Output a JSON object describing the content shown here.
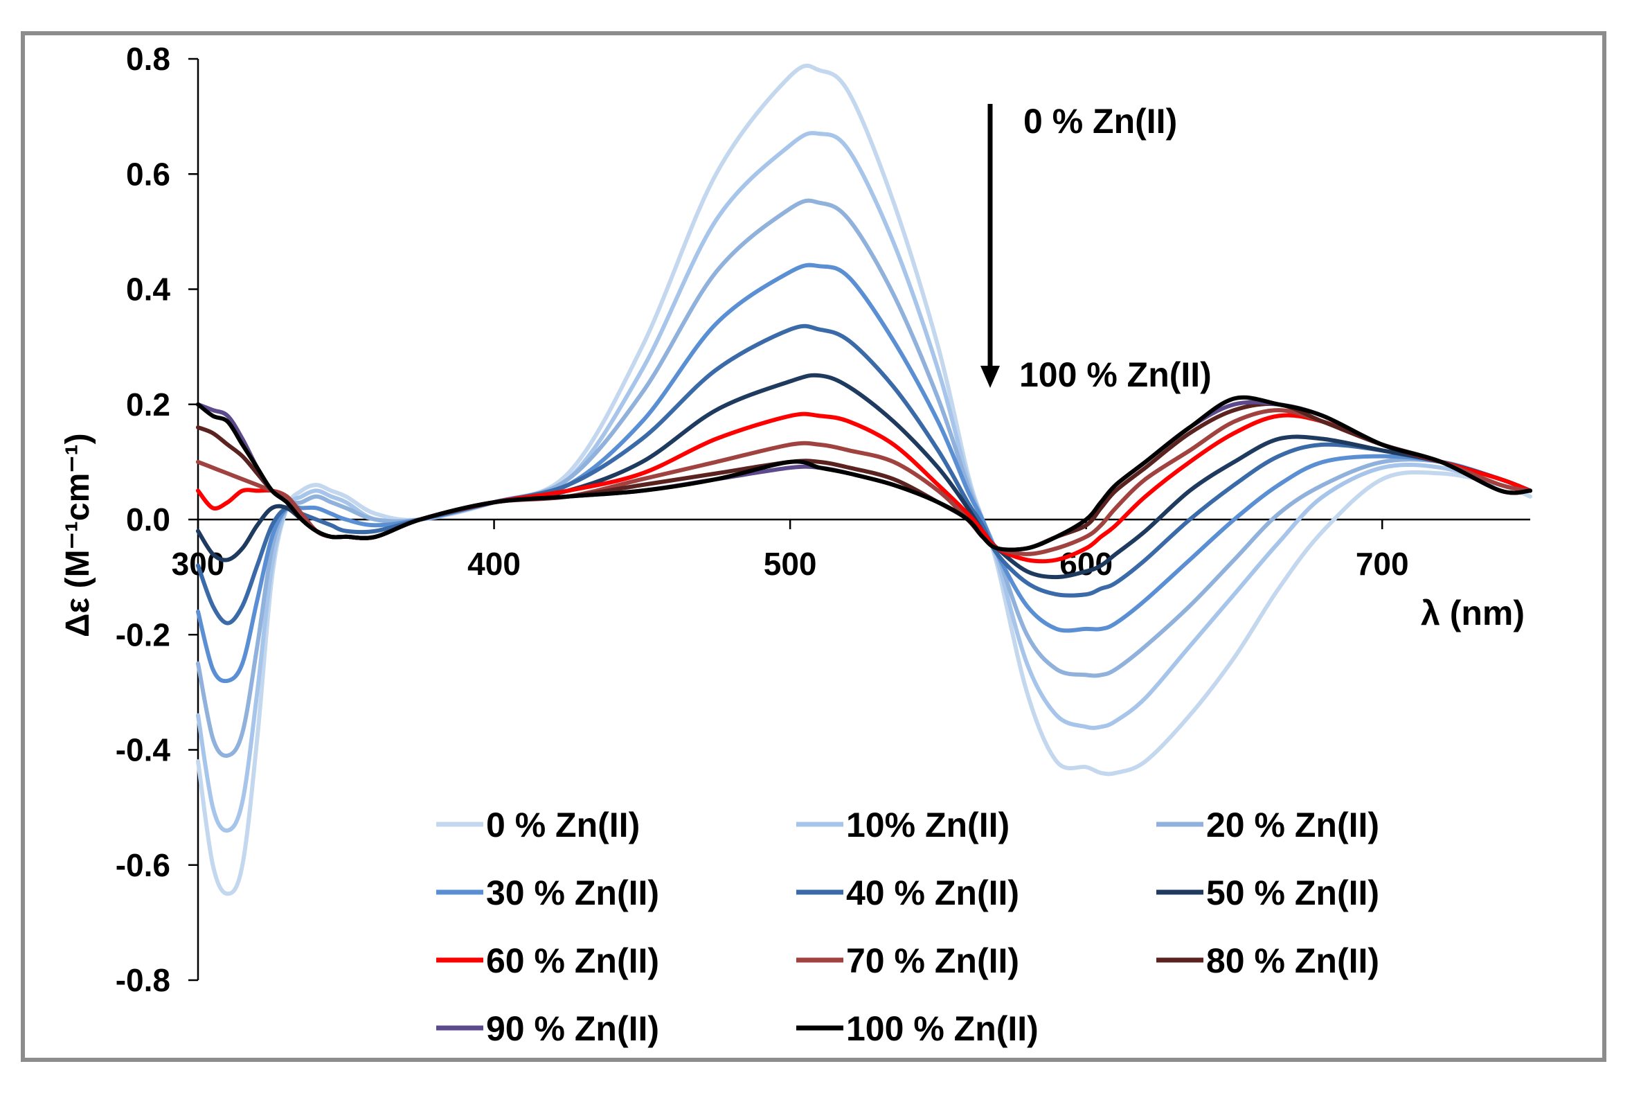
{
  "chart_data": {
    "type": "line",
    "title": "",
    "xlabel": "λ (nm)",
    "ylabel": "Δε (M⁻¹cm⁻¹)",
    "xlim": [
      300,
      750
    ],
    "ylim": [
      -0.8,
      0.8
    ],
    "x_ticks": [
      "300",
      "400",
      "500",
      "600",
      "700"
    ],
    "y_ticks": [
      "0.8",
      "0.6",
      "0.4",
      "0.2",
      "0.0",
      "-0.2",
      "-0.4",
      "-0.6",
      "-0.8"
    ],
    "grid": false,
    "legend_position": "bottom-center",
    "annotations": {
      "top_label": "0 % Zn(II)",
      "bottom_label": "100 % Zn(II)",
      "arrow": "down"
    },
    "x": [
      300,
      305,
      310,
      315,
      320,
      325,
      330,
      335,
      340,
      345,
      350,
      360,
      375,
      400,
      425,
      450,
      475,
      500,
      510,
      520,
      535,
      550,
      560,
      565,
      570,
      580,
      590,
      600,
      605,
      610,
      620,
      635,
      650,
      665,
      680,
      700,
      720,
      740,
      750
    ],
    "series": [
      {
        "name": "0 % Zn(II)",
        "color": "#c3d7ee",
        "values": [
          -0.42,
          -0.6,
          -0.65,
          -0.6,
          -0.38,
          -0.1,
          0.02,
          0.05,
          0.06,
          0.05,
          0.04,
          0.01,
          0.0,
          0.03,
          0.08,
          0.3,
          0.6,
          0.77,
          0.78,
          0.74,
          0.55,
          0.3,
          0.08,
          0.0,
          -0.08,
          -0.3,
          -0.42,
          -0.43,
          -0.44,
          -0.44,
          -0.42,
          -0.34,
          -0.24,
          -0.12,
          -0.02,
          0.07,
          0.08,
          0.06,
          0.04
        ]
      },
      {
        "name": "10% Zn(II)",
        "color": "#a7c5ea",
        "values": [
          -0.34,
          -0.5,
          -0.54,
          -0.49,
          -0.3,
          -0.08,
          0.02,
          0.04,
          0.05,
          0.04,
          0.03,
          0.0,
          0.0,
          0.03,
          0.07,
          0.26,
          0.52,
          0.65,
          0.67,
          0.64,
          0.48,
          0.26,
          0.07,
          0.0,
          -0.07,
          -0.25,
          -0.34,
          -0.36,
          -0.36,
          -0.35,
          -0.31,
          -0.22,
          -0.13,
          -0.04,
          0.04,
          0.09,
          0.09,
          0.06,
          0.05
        ]
      },
      {
        "name": "20  % Zn(II)",
        "color": "#8fb1dc",
        "values": [
          -0.25,
          -0.38,
          -0.41,
          -0.37,
          -0.22,
          -0.05,
          0.02,
          0.03,
          0.04,
          0.03,
          0.02,
          0.0,
          0.0,
          0.03,
          0.07,
          0.22,
          0.43,
          0.54,
          0.55,
          0.52,
          0.39,
          0.21,
          0.06,
          0.0,
          -0.06,
          -0.2,
          -0.26,
          -0.27,
          -0.27,
          -0.26,
          -0.22,
          -0.15,
          -0.07,
          0.01,
          0.06,
          0.1,
          0.1,
          0.07,
          0.05
        ]
      },
      {
        "name": "30 % Zn(II)",
        "color": "#5b8fd4",
        "values": [
          -0.16,
          -0.26,
          -0.28,
          -0.25,
          -0.14,
          -0.03,
          0.02,
          0.02,
          0.02,
          0.01,
          0.0,
          -0.01,
          0.0,
          0.03,
          0.06,
          0.17,
          0.34,
          0.43,
          0.44,
          0.42,
          0.31,
          0.17,
          0.05,
          0.0,
          -0.06,
          -0.15,
          -0.19,
          -0.19,
          -0.19,
          -0.18,
          -0.14,
          -0.07,
          0.0,
          0.06,
          0.1,
          0.11,
          0.1,
          0.07,
          0.05
        ]
      },
      {
        "name": "40 % Zn(II)",
        "color": "#3a6aa8",
        "values": [
          -0.08,
          -0.15,
          -0.18,
          -0.15,
          -0.08,
          -0.01,
          0.02,
          0.01,
          0.0,
          -0.01,
          -0.02,
          -0.02,
          0.0,
          0.03,
          0.06,
          0.14,
          0.26,
          0.33,
          0.33,
          0.31,
          0.23,
          0.12,
          0.03,
          -0.01,
          -0.06,
          -0.11,
          -0.13,
          -0.13,
          -0.12,
          -0.11,
          -0.07,
          0.0,
          0.06,
          0.11,
          0.13,
          0.12,
          0.1,
          0.07,
          0.05
        ]
      },
      {
        "name": "50 % Zn(II)",
        "color": "#1f3a5f",
        "values": [
          -0.02,
          -0.06,
          -0.07,
          -0.05,
          -0.01,
          0.02,
          0.02,
          0.0,
          -0.02,
          -0.03,
          -0.03,
          -0.03,
          0.0,
          0.03,
          0.05,
          0.1,
          0.19,
          0.24,
          0.25,
          0.23,
          0.17,
          0.09,
          0.02,
          -0.02,
          -0.05,
          -0.09,
          -0.1,
          -0.09,
          -0.08,
          -0.06,
          -0.02,
          0.05,
          0.1,
          0.14,
          0.14,
          0.12,
          0.1,
          0.07,
          0.05
        ]
      },
      {
        "name": "60 % Zn(II)",
        "color": "#ff0000",
        "values": [
          0.05,
          0.02,
          0.03,
          0.05,
          0.05,
          0.05,
          0.04,
          0.01,
          -0.02,
          -0.03,
          -0.03,
          -0.03,
          0.0,
          0.03,
          0.05,
          0.08,
          0.14,
          0.18,
          0.18,
          0.17,
          0.13,
          0.06,
          0.01,
          -0.02,
          -0.05,
          -0.07,
          -0.07,
          -0.05,
          -0.03,
          -0.01,
          0.04,
          0.1,
          0.15,
          0.18,
          0.17,
          0.13,
          0.1,
          0.07,
          0.05
        ]
      },
      {
        "name": "70 % Zn(II)",
        "color": "#a0423f",
        "values": [
          0.1,
          0.09,
          0.08,
          0.07,
          0.06,
          0.05,
          0.04,
          0.01,
          -0.02,
          -0.03,
          -0.03,
          -0.03,
          0.0,
          0.03,
          0.04,
          0.07,
          0.1,
          0.13,
          0.13,
          0.12,
          0.1,
          0.05,
          0.0,
          -0.03,
          -0.05,
          -0.06,
          -0.05,
          -0.03,
          -0.01,
          0.02,
          0.07,
          0.12,
          0.17,
          0.19,
          0.17,
          0.13,
          0.1,
          0.06,
          0.05
        ]
      },
      {
        "name": "80 % Zn(II)",
        "color": "#5a2320",
        "values": [
          0.16,
          0.15,
          0.13,
          0.11,
          0.08,
          0.05,
          0.03,
          0.0,
          -0.02,
          -0.03,
          -0.03,
          -0.03,
          0.0,
          0.03,
          0.04,
          0.06,
          0.08,
          0.1,
          0.1,
          0.09,
          0.07,
          0.03,
          0.0,
          -0.03,
          -0.05,
          -0.05,
          -0.03,
          -0.01,
          0.02,
          0.05,
          0.09,
          0.15,
          0.19,
          0.2,
          0.17,
          0.13,
          0.1,
          0.05,
          0.05
        ]
      },
      {
        "name": "90 % Zn(II)",
        "color": "#5c4a8c",
        "values": [
          0.2,
          0.19,
          0.18,
          0.14,
          0.09,
          0.05,
          0.03,
          0.0,
          -0.02,
          -0.03,
          -0.03,
          -0.03,
          0.0,
          0.03,
          0.04,
          0.05,
          0.07,
          0.09,
          0.09,
          0.08,
          0.06,
          0.03,
          0.0,
          -0.03,
          -0.05,
          -0.05,
          -0.03,
          0.0,
          0.03,
          0.06,
          0.1,
          0.16,
          0.2,
          0.2,
          0.18,
          0.13,
          0.1,
          0.05,
          0.05
        ]
      },
      {
        "name": "100 % Zn(II)",
        "color": "#000000",
        "values": [
          0.2,
          0.18,
          0.17,
          0.13,
          0.09,
          0.05,
          0.03,
          0.0,
          -0.02,
          -0.03,
          -0.03,
          -0.03,
          0.0,
          0.03,
          0.04,
          0.05,
          0.07,
          0.1,
          0.09,
          0.08,
          0.06,
          0.03,
          0.0,
          -0.03,
          -0.05,
          -0.05,
          -0.03,
          0.0,
          0.03,
          0.06,
          0.1,
          0.16,
          0.21,
          0.2,
          0.18,
          0.13,
          0.1,
          0.05,
          0.05
        ]
      }
    ]
  }
}
